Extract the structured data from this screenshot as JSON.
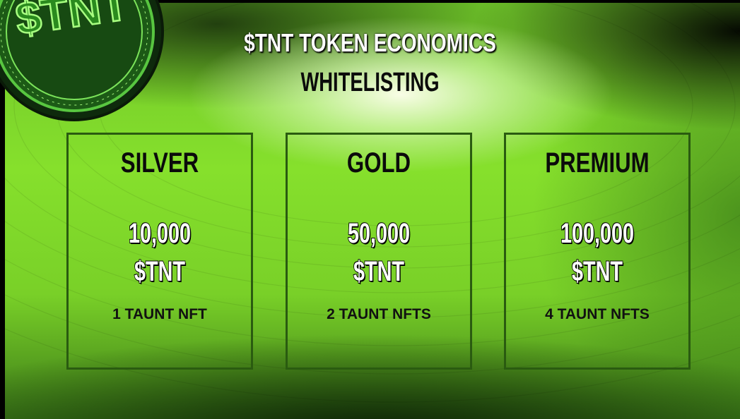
{
  "coin": {
    "label": "$TNT"
  },
  "header": {
    "title": "$TNT TOKEN ECONOMICS",
    "subtitle": "WHITELISTING"
  },
  "tiers": [
    {
      "name": "SILVER",
      "amount": "10,000",
      "unit": "$TNT",
      "reward": "1 TAUNT NFT"
    },
    {
      "name": "GOLD",
      "amount": "50,000",
      "unit": "$TNT",
      "reward": "2 TAUNT NFTS"
    },
    {
      "name": "PREMIUM",
      "amount": "100,000",
      "unit": "$TNT",
      "reward": "4 TAUNT NFTS"
    }
  ]
}
